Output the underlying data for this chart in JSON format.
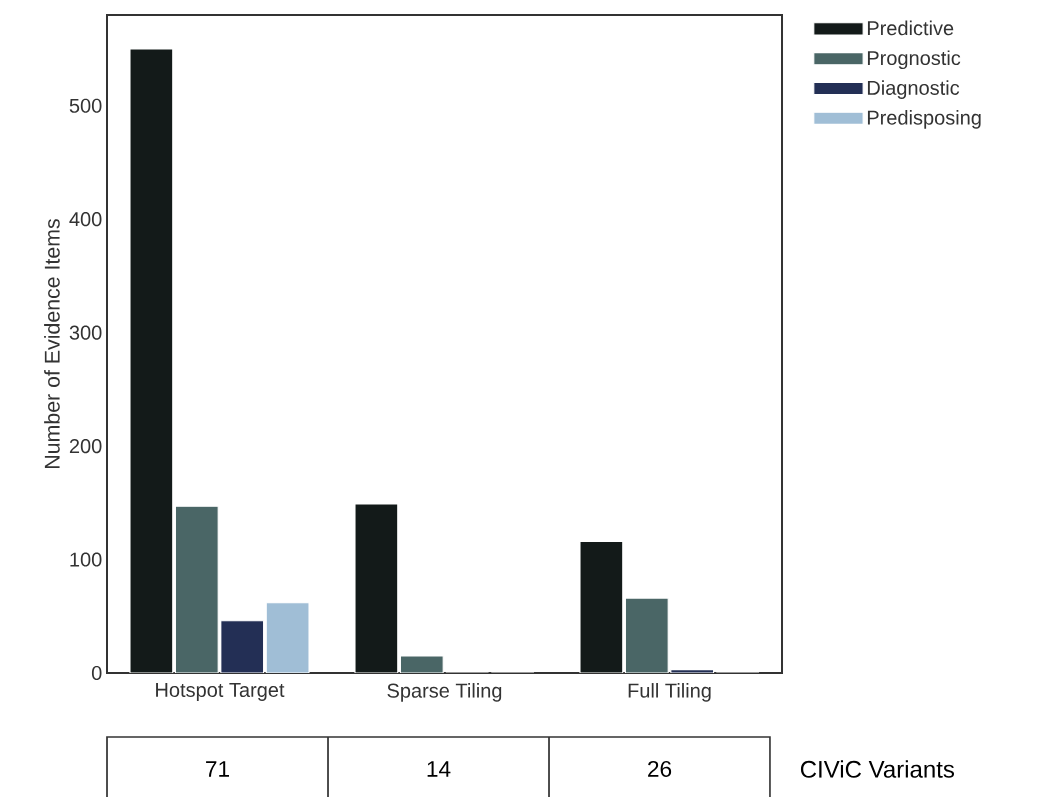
{
  "chart_data": {
    "type": "bar",
    "ylabel": "Number of Evidence Items",
    "categories": [
      "Hotspot Target",
      "Sparse Tiling",
      "Full Tiling"
    ],
    "series": [
      {
        "name": "Predictive",
        "color": "#131a19",
        "values": [
          550,
          149,
          116
        ]
      },
      {
        "name": "Prognostic",
        "color": "#4a6666",
        "values": [
          147,
          15,
          66
        ]
      },
      {
        "name": "Diagnostic",
        "color": "#232f55",
        "values": [
          46,
          0,
          3
        ]
      },
      {
        "name": "Predisposing",
        "color": "#a0bed6",
        "values": [
          62,
          0,
          0
        ]
      }
    ],
    "ylim": [
      0,
      580
    ],
    "yticks": [
      0,
      100,
      200,
      300,
      400,
      500
    ],
    "grid": false,
    "legend": "right",
    "annotations": [
      "71",
      "14",
      "26",
      "CIViC Variants"
    ]
  }
}
